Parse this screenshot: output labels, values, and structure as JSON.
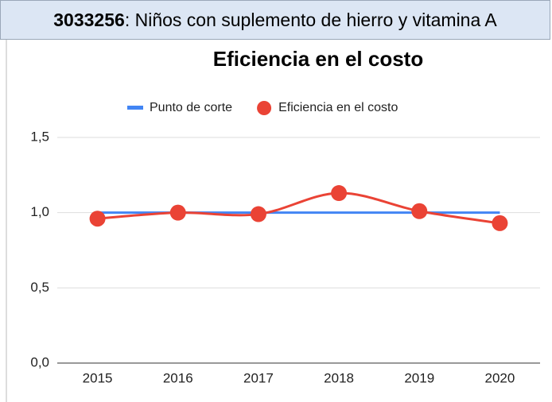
{
  "header": {
    "code": "3033256",
    "text": ": Niños con suplemento de hierro y vitamina A"
  },
  "chart_data": {
    "type": "line",
    "title": "Eficiencia en el costo",
    "categories": [
      "2015",
      "2016",
      "2017",
      "2018",
      "2019",
      "2020"
    ],
    "series": [
      {
        "name": "Punto de corte",
        "color": "#4285f4",
        "values": [
          1.0,
          1.0,
          1.0,
          1.0,
          1.0,
          1.0
        ],
        "markers": false,
        "smooth": false
      },
      {
        "name": "Eficiencia en el costo",
        "color": "#ea4335",
        "values": [
          0.96,
          1.0,
          0.99,
          1.13,
          1.01,
          0.93
        ],
        "markers": true,
        "smooth": true
      }
    ],
    "ylim": [
      0,
      1.5
    ],
    "yticks": [
      {
        "value": 0,
        "label": "0,0"
      },
      {
        "value": 0.5,
        "label": "0,5"
      },
      {
        "value": 1.0,
        "label": "1,0"
      },
      {
        "value": 1.5,
        "label": "1,5"
      }
    ],
    "grid": true,
    "legend": "top"
  }
}
